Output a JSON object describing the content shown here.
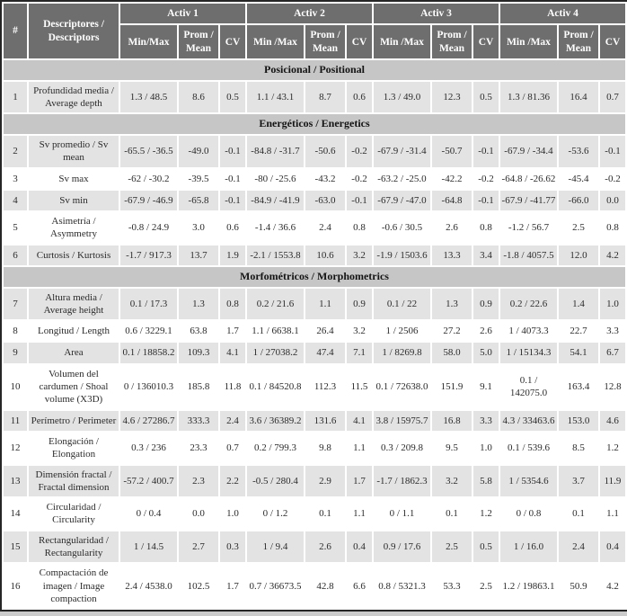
{
  "colors": {
    "header_bg": "#6e6e6e",
    "header_text": "#ffffff",
    "section_bg": "#c6c6c6",
    "row_shade": "#e3e3e3",
    "outer_border": "#262626"
  },
  "table": {
    "number_header": "#",
    "descriptor_header": "Descriptores / Descriptors",
    "groups": [
      {
        "label": "Activ 1",
        "minmax": "Min/Max",
        "mean": "Prom / Mean",
        "cv": "CV"
      },
      {
        "label": "Activ 2",
        "minmax": "Min /Max",
        "mean": "Prom / Mean",
        "cv": "CV"
      },
      {
        "label": "Activ 3",
        "minmax": "Min /Max",
        "mean": "Prom / Mean",
        "cv": "CV"
      },
      {
        "label": "Activ 4",
        "minmax": "Min /Max",
        "mean": "Prom / Mean",
        "cv": "CV"
      }
    ],
    "body": [
      {
        "section": "Posicional / Positional"
      },
      {
        "num": "1",
        "desc": "Profundidad media / Average depth",
        "cells": [
          "1.3 / 48.5",
          "8.6",
          "0.5",
          "1.1 / 43.1",
          "8.7",
          "0.6",
          "1.3 / 49.0",
          "12.3",
          "0.5",
          "1.3 / 81.36",
          "16.4",
          "0.7"
        ]
      },
      {
        "section": "Energéticos / Energetics"
      },
      {
        "num": "2",
        "desc": "Sv promedio / Sv mean",
        "cells": [
          "-65.5 / -36.5",
          "-49.0",
          "-0.1",
          "-84.8 / -31.7",
          "-50.6",
          "-0.2",
          "-67.9 / -31.4",
          "-50.7",
          "-0.1",
          "-67.9 / -34.4",
          "-53.6",
          "-0.1"
        ]
      },
      {
        "num": "3",
        "desc": "Sv max",
        "cells": [
          "-62 / -30.2",
          "-39.5",
          "-0.1",
          "-80 / -25.6",
          "-43.2",
          "-0.2",
          "-63.2 / -25.0",
          "-42.2",
          "-0.2",
          "-64.8 / -26.62",
          "-45.4",
          "-0.2"
        ]
      },
      {
        "num": "4",
        "desc": "Sv min",
        "cells": [
          "-67.9 / -46.9",
          "-65.8",
          "-0.1",
          "-84.9 / -41.9",
          "-63.0",
          "-0.1",
          "-67.9 / -47.0",
          "-64.8",
          "-0.1",
          "-67.9 / -41.77",
          "-66.0",
          "0.0"
        ]
      },
      {
        "num": "5",
        "desc": "Asimetría / Asymmetry",
        "cells": [
          "-0.8 / 24.9",
          "3.0",
          "0.6",
          "-1.4 / 36.6",
          "2.4",
          "0.8",
          "-0.6 / 30.5",
          "2.6",
          "0.8",
          "-1.2 / 56.7",
          "2.5",
          "0.8"
        ]
      },
      {
        "num": "6",
        "desc": "Curtosis / Kurtosis",
        "cells": [
          "-1.7 / 917.3",
          "13.7",
          "1.9",
          "-2.1 / 1553.8",
          "10.6",
          "3.2",
          "-1.9 / 1503.6",
          "13.3",
          "3.4",
          "-1.8 / 4057.5",
          "12.0",
          "4.2"
        ]
      },
      {
        "section": "Morfométricos / Morphometrics"
      },
      {
        "num": "7",
        "desc": "Altura media / Average height",
        "cells": [
          "0.1 / 17.3",
          "1.3",
          "0.8",
          "0.2 / 21.6",
          "1.1",
          "0.9",
          "0.1 / 22",
          "1.3",
          "0.9",
          "0.2 / 22.6",
          "1.4",
          "1.0"
        ]
      },
      {
        "num": "8",
        "desc": "Longitud / Length",
        "cells": [
          "0.6 / 3229.1",
          "63.8",
          "1.7",
          "1.1 / 6638.1",
          "26.4",
          "3.2",
          "1 / 2506",
          "27.2",
          "2.6",
          "1 / 4073.3",
          "22.7",
          "3.3"
        ]
      },
      {
        "num": "9",
        "desc": "Area",
        "cells": [
          "0.1 / 18858.2",
          "109.3",
          "4.1",
          "1 / 27038.2",
          "47.4",
          "7.1",
          "1 / 8269.8",
          "58.0",
          "5.0",
          "1 / 15134.3",
          "54.1",
          "6.7"
        ]
      },
      {
        "num": "10",
        "desc": "Volumen del cardumen / Shoal volume (X3D)",
        "cells": [
          "0 / 136010.3",
          "185.8",
          "11.8",
          "0.1 / 84520.8",
          "112.3",
          "11.5",
          "0.1 / 72638.0",
          "151.9",
          "9.1",
          "0.1 / 142075.0",
          "163.4",
          "12.8"
        ]
      },
      {
        "num": "11",
        "desc": "Perímetro / Perimeter",
        "cells": [
          "4.6 / 27286.7",
          "333.3",
          "2.4",
          "3.6 / 36389.2",
          "131.6",
          "4.1",
          "3.8 / 15975.7",
          "16.8",
          "3.3",
          "4.3 / 33463.6",
          "153.0",
          "4.6"
        ]
      },
      {
        "num": "12",
        "desc": "Elongación / Elongation",
        "cells": [
          "0.3 / 236",
          "23.3",
          "0.7",
          "0.2 / 799.3",
          "9.8",
          "1.1",
          "0.3 / 209.8",
          "9.5",
          "1.0",
          "0.1 / 539.6",
          "8.5",
          "1.2"
        ]
      },
      {
        "num": "13",
        "desc": "Dimensión fractal / Fractal dimension",
        "cells": [
          "-57.2 / 400.7",
          "2.3",
          "2.2",
          "-0.5 / 280.4",
          "2.9",
          "1.7",
          "-1.7 / 1862.3",
          "3.2",
          "5.8",
          "1 / 5354.6",
          "3.7",
          "11.9"
        ]
      },
      {
        "num": "14",
        "desc": "Circularidad / Circularity",
        "cells": [
          "0 / 0.4",
          "0.0",
          "1.0",
          "0 / 1.2",
          "0.1",
          "1.1",
          "0 / 1.1",
          "0.1",
          "1.2",
          "0 / 0.8",
          "0.1",
          "1.1"
        ]
      },
      {
        "num": "15",
        "desc": "Rectangularidad / Rectangularity",
        "cells": [
          "1 / 14.5",
          "2.7",
          "0.3",
          "1 / 9.4",
          "2.6",
          "0.4",
          "0.9 / 17.6",
          "2.5",
          "0.5",
          "1 / 16.0",
          "2.4",
          "0.4"
        ]
      },
      {
        "num": "16",
        "desc": "Compactación de imagen / Image compaction",
        "cells": [
          "2.4 / 4538.0",
          "102.5",
          "1.7",
          "0.7 / 36673.5",
          "42.8",
          "6.6",
          "0.8 / 5321.3",
          "53.3",
          "2.5",
          "1.2 / 19863.1",
          "50.9",
          "4.2"
        ]
      }
    ]
  }
}
